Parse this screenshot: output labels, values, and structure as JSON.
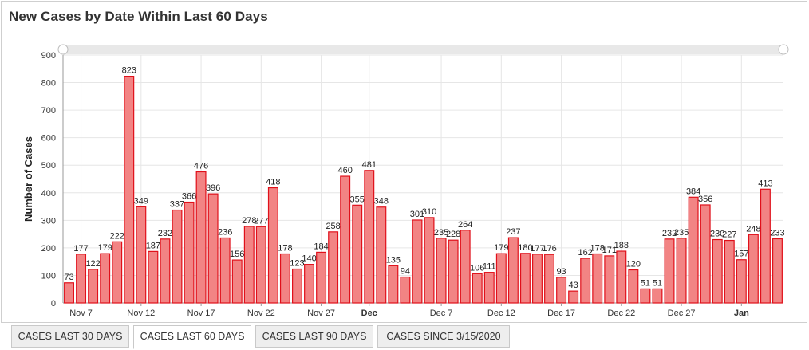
{
  "title": "New Cases by Date Within Last 60 Days",
  "tabs": [
    {
      "label": "CASES LAST 30 DAYS",
      "active": false
    },
    {
      "label": "CASES LAST 60 DAYS",
      "active": true
    },
    {
      "label": "CASES LAST 90 DAYS",
      "active": false
    },
    {
      "label": "CASES SINCE 3/15/2020",
      "active": false
    }
  ],
  "colors": {
    "bar_fill": "#f28484",
    "bar_stroke": "#e0101a",
    "grid": "#e6e6e6",
    "scroller": "#e8e8e8"
  },
  "chart_data": {
    "type": "bar",
    "ylabel": "Number of Cases",
    "ylim": [
      0,
      900
    ],
    "yticks": [
      "0",
      "100",
      "200",
      "300",
      "400",
      "500",
      "600",
      "700",
      "800",
      "900"
    ],
    "xtick_labels": [
      {
        "index": 1,
        "label": "Nov 7",
        "bold": false
      },
      {
        "index": 6,
        "label": "Nov 12",
        "bold": false
      },
      {
        "index": 11,
        "label": "Nov 17",
        "bold": false
      },
      {
        "index": 16,
        "label": "Nov 22",
        "bold": false
      },
      {
        "index": 21,
        "label": "Nov 27",
        "bold": false
      },
      {
        "index": 25,
        "label": "Dec",
        "bold": true
      },
      {
        "index": 31,
        "label": "Dec 7",
        "bold": false
      },
      {
        "index": 36,
        "label": "Dec 12",
        "bold": false
      },
      {
        "index": 41,
        "label": "Dec 17",
        "bold": false
      },
      {
        "index": 46,
        "label": "Dec 22",
        "bold": false
      },
      {
        "index": 51,
        "label": "Dec 27",
        "bold": false
      },
      {
        "index": 56,
        "label": "Jan",
        "bold": true
      }
    ],
    "values": [
      73,
      177,
      122,
      179,
      222,
      823,
      349,
      187,
      232,
      337,
      366,
      476,
      396,
      236,
      156,
      278,
      277,
      418,
      178,
      123,
      140,
      184,
      258,
      460,
      355,
      481,
      348,
      135,
      94,
      301,
      310,
      235,
      228,
      264,
      106,
      111,
      179,
      237,
      180,
      177,
      176,
      93,
      43,
      162,
      178,
      171,
      188,
      120,
      51,
      51,
      232,
      235,
      384,
      356,
      230,
      227,
      157,
      248,
      413,
      233
    ],
    "data_labels": [
      "73",
      "177",
      "122",
      "179",
      "222",
      "823",
      "349",
      "187",
      "232",
      "337",
      "366",
      "476",
      "396",
      "236",
      "156",
      "278",
      "277",
      "418",
      "178",
      "123",
      "140",
      "184",
      "258",
      "460",
      "355",
      "481",
      "348",
      "135",
      "94",
      "301",
      "310",
      "235",
      "228",
      "264",
      "106",
      "111",
      "179",
      "237",
      "180",
      "177",
      "176",
      "93",
      "43",
      "162",
      "178",
      "171",
      "188",
      "120",
      "51",
      "51",
      "232",
      "235",
      "384",
      "356",
      "230",
      "227",
      "157",
      "248",
      "413",
      "233"
    ]
  }
}
